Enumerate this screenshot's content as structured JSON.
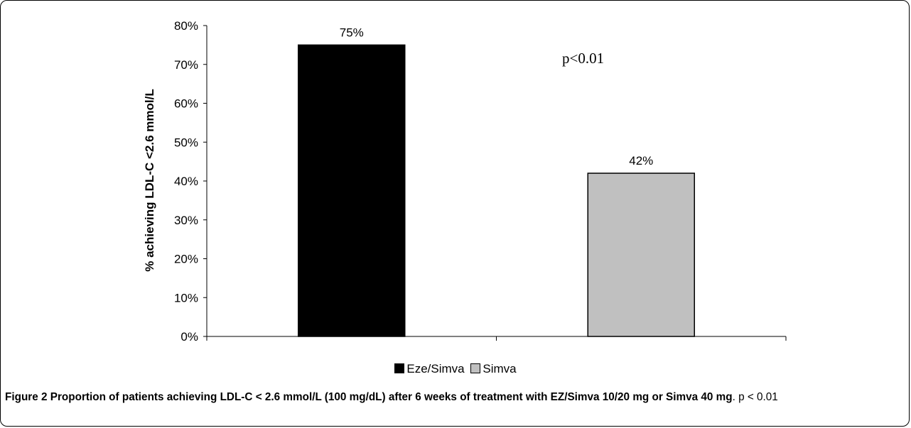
{
  "chart_data": {
    "type": "bar",
    "categories": [
      "Eze/Simva",
      "Simva"
    ],
    "values": [
      75,
      42
    ],
    "value_labels": [
      "75%",
      "42%"
    ],
    "colors": [
      "#000000",
      "#c0c0c0"
    ],
    "ylabel": "% achieving LDL-C <2.6 mmol/L",
    "ylim": [
      0,
      80
    ],
    "yticks": [
      "0%",
      "10%",
      "20%",
      "30%",
      "40%",
      "50%",
      "60%",
      "70%",
      "80%"
    ],
    "annotation": "p<0.01",
    "legend": [
      "Eze/Simva",
      "Simva"
    ],
    "legend_position": "bottom",
    "grid": false
  },
  "caption": {
    "label": "Figure 2",
    "title": "Proportion of patients achieving LDL-C < 2.6 mmol/L (100 mg/dL) after 6 weeks of treatment with EZ/Simva 10/20 mg or Simva 40 mg",
    "tail": ". p < 0.01"
  }
}
